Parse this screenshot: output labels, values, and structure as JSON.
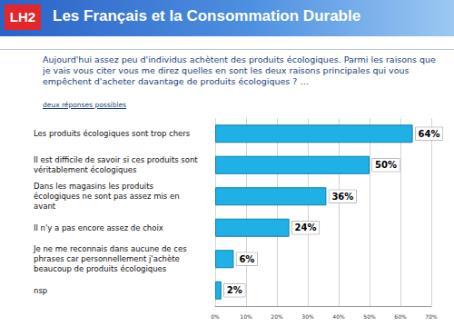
{
  "header": {
    "logo": "LH2"
  },
  "chart_data": {
    "type": "bar",
    "orientation": "horizontal",
    "title": "Les Français et la Consommation Durable",
    "subtitle": "Aujourd'hui assez peu d'individus achètent des produits écologiques. Parmi les raisons que je vais vous citer vous me direz quelles en sont les deux raisons principales qui vous empêchent d'acheter davantage de produits écologiques ? …",
    "annotations": [
      "deux réponses possibles"
    ],
    "categories": [
      "Les produits écologiques sont trop chers",
      "Il est difficile de savoir si ces produits sont véritablement écologiques",
      "Dans les magasins les produits écologiques ne sont pas assez mis en avant",
      "Il n'y a pas encore assez de choix",
      "Je ne me reconnais dans aucune de ces phrases car personnellement j'achète beaucoup de produits écologiques",
      "nsp"
    ],
    "values": [
      64,
      50,
      36,
      24,
      6,
      2
    ],
    "value_labels": [
      "64%",
      "50%",
      "36%",
      "24%",
      "6%",
      "2%"
    ],
    "data_labels": true,
    "color": "#1fb0e6",
    "xlim": [
      0,
      70
    ],
    "xticks": [
      {
        "value": 0,
        "label": "0%"
      },
      {
        "value": 10,
        "label": "10%"
      },
      {
        "value": 20,
        "label": "20%"
      },
      {
        "value": 30,
        "label": "30%"
      },
      {
        "value": 40,
        "label": "40%"
      },
      {
        "value": 50,
        "label": "50%"
      },
      {
        "value": 60,
        "label": "60%"
      },
      {
        "value": 70,
        "label": "70%"
      }
    ],
    "grid": true
  }
}
